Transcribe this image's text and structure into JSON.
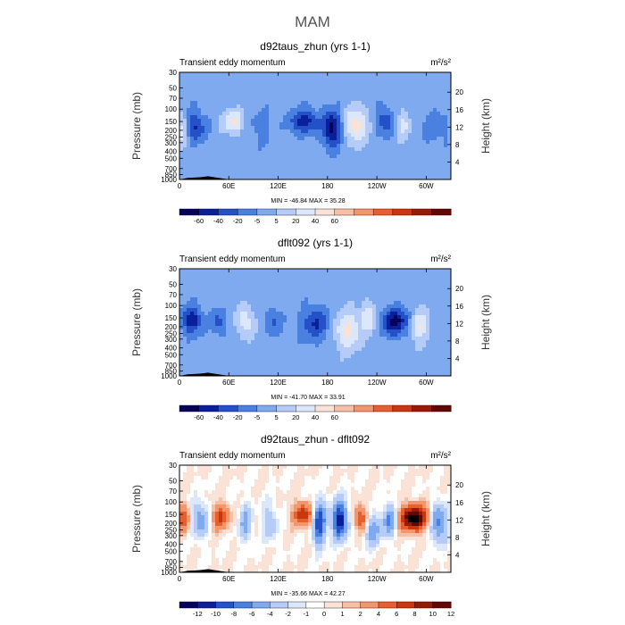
{
  "figure": {
    "title": "MAM"
  },
  "colors": {
    "scale_a": [
      "#06005c",
      "#0a1f9a",
      "#2450c8",
      "#4a80e0",
      "#80aaf0",
      "#b4ccf7",
      "#dde7fb",
      "#fbe2d6",
      "#f7bfa6",
      "#f2966e",
      "#e6602f",
      "#c8380f",
      "#981a06",
      "#620700"
    ],
    "scale_b": [
      "#06005c",
      "#0a1f9a",
      "#2450c8",
      "#4a80e0",
      "#80aaf0",
      "#b4ccf7",
      "#dde7fb",
      "#ffffff",
      "#fbe2d6",
      "#f7bfa6",
      "#f2966e",
      "#e6602f",
      "#c8380f",
      "#981a06",
      "#620700"
    ]
  },
  "chart_data": [
    {
      "type": "heatmap",
      "title": "d92taus_zhun (yrs 1-1)",
      "subtitle_left": "Transient eddy momentum",
      "units": "m²/s²",
      "ylabel": "Pressure  (mb)",
      "ylabel_right": "Height  (km)",
      "x_ticks": [
        "0",
        "60E",
        "120E",
        "180",
        "120W",
        "60W"
      ],
      "x_tick_values": [
        0,
        60,
        120,
        180,
        240,
        300
      ],
      "xlim": [
        0,
        330
      ],
      "y_ticks": [
        "30",
        "50",
        "70",
        "100",
        "150",
        "200",
        "250",
        "300",
        "400",
        "500",
        "700",
        "850",
        "1000"
      ],
      "y_tick_values": [
        30,
        50,
        70,
        100,
        150,
        200,
        250,
        300,
        400,
        500,
        700,
        850,
        1000
      ],
      "ylim": [
        1000,
        30
      ],
      "y_right_ticks": [
        "4",
        "8",
        "12",
        "16",
        "20"
      ],
      "y_right_values": [
        4,
        8,
        12,
        16,
        20
      ],
      "min_max": "MIN = -46.84   MAX =  35.28",
      "levels": [
        "-60",
        "-40",
        "-20",
        "-5",
        "5",
        "20",
        "40",
        "60"
      ],
      "scale": "scale_a",
      "blobs": [
        {
          "lon": 18,
          "p": 180,
          "amp": -30,
          "wl": 12,
          "wp": 0.45
        },
        {
          "lon": 5,
          "p": 200,
          "amp": 22,
          "wl": 8,
          "wp": 0.5
        },
        {
          "lon": 65,
          "p": 150,
          "amp": 28,
          "wl": 11,
          "wp": 0.35
        },
        {
          "lon": 100,
          "p": 180,
          "amp": -12,
          "wl": 10,
          "wp": 0.45
        },
        {
          "lon": 152,
          "p": 150,
          "amp": -35,
          "wl": 16,
          "wp": 0.35
        },
        {
          "lon": 185,
          "p": 190,
          "amp": -46,
          "wl": 10,
          "wp": 0.55
        },
        {
          "lon": 215,
          "p": 170,
          "amp": 35,
          "wl": 12,
          "wp": 0.5
        },
        {
          "lon": 250,
          "p": 150,
          "amp": -22,
          "wl": 10,
          "wp": 0.4
        },
        {
          "lon": 272,
          "p": 170,
          "amp": 18,
          "wl": 8,
          "wp": 0.4
        },
        {
          "lon": 310,
          "p": 180,
          "amp": -10,
          "wl": 15,
          "wp": 0.5
        }
      ]
    },
    {
      "type": "heatmap",
      "title": "dflt092 (yrs 1-1)",
      "subtitle_left": "Transient eddy momentum",
      "units": "m²/s²",
      "ylabel": "Pressure  (mb)",
      "ylabel_right": "Height  (km)",
      "x_ticks": [
        "0",
        "60E",
        "120E",
        "180",
        "120W",
        "60W"
      ],
      "x_tick_values": [
        0,
        60,
        120,
        180,
        240,
        300
      ],
      "xlim": [
        0,
        330
      ],
      "y_ticks": [
        "30",
        "50",
        "70",
        "100",
        "150",
        "200",
        "250",
        "300",
        "400",
        "500",
        "700",
        "850",
        "1000"
      ],
      "y_tick_values": [
        30,
        50,
        70,
        100,
        150,
        200,
        250,
        300,
        400,
        500,
        700,
        850,
        1000
      ],
      "ylim": [
        1000,
        30
      ],
      "y_right_ticks": [
        "4",
        "8",
        "12",
        "16",
        "20"
      ],
      "y_right_values": [
        4,
        8,
        12,
        16,
        20
      ],
      "min_max": "MIN = -41.70   MAX =  33.91",
      "levels": [
        "-60",
        "-40",
        "-20",
        "-5",
        "5",
        "20",
        "40",
        "60"
      ],
      "scale": "scale_a",
      "blobs": [
        {
          "lon": 15,
          "p": 160,
          "amp": -32,
          "wl": 12,
          "wp": 0.4
        },
        {
          "lon": 48,
          "p": 170,
          "amp": -15,
          "wl": 8,
          "wp": 0.4
        },
        {
          "lon": 80,
          "p": 170,
          "amp": 20,
          "wl": 9,
          "wp": 0.45
        },
        {
          "lon": 115,
          "p": 170,
          "amp": -14,
          "wl": 8,
          "wp": 0.4
        },
        {
          "lon": 165,
          "p": 180,
          "amp": -25,
          "wl": 14,
          "wp": 0.5
        },
        {
          "lon": 205,
          "p": 230,
          "amp": 28,
          "wl": 14,
          "wp": 0.55
        },
        {
          "lon": 230,
          "p": 150,
          "amp": 22,
          "wl": 9,
          "wp": 0.4
        },
        {
          "lon": 262,
          "p": 170,
          "amp": -41,
          "wl": 14,
          "wp": 0.4
        },
        {
          "lon": 292,
          "p": 200,
          "amp": 24,
          "wl": 10,
          "wp": 0.45
        }
      ]
    },
    {
      "type": "heatmap",
      "title": "d92taus_zhun - dflt092",
      "subtitle_left": "Transient eddy momentum",
      "units": "m²/s²",
      "ylabel": "Pressure  (mb)",
      "ylabel_right": "Height  (km)",
      "x_ticks": [
        "0",
        "60E",
        "120E",
        "180",
        "120W",
        "60W"
      ],
      "x_tick_values": [
        0,
        60,
        120,
        180,
        240,
        300
      ],
      "xlim": [
        0,
        330
      ],
      "y_ticks": [
        "30",
        "50",
        "70",
        "100",
        "150",
        "200",
        "250",
        "300",
        "400",
        "500",
        "700",
        "850",
        "1000"
      ],
      "y_tick_values": [
        30,
        50,
        70,
        100,
        150,
        200,
        250,
        300,
        400,
        500,
        700,
        850,
        1000
      ],
      "ylim": [
        1000,
        30
      ],
      "y_right_ticks": [
        "4",
        "8",
        "12",
        "16",
        "20"
      ],
      "y_right_values": [
        4,
        8,
        12,
        16,
        20
      ],
      "min_max": "MIN = -35.66   MAX =  42.27",
      "levels": [
        "-12",
        "-10",
        "-8",
        "-6",
        "-4",
        "-2",
        "-1",
        "0",
        "1",
        "2",
        "4",
        "6",
        "8",
        "10",
        "12"
      ],
      "scale": "scale_b",
      "blobs": [
        {
          "lon": 5,
          "p": 170,
          "amp": 16,
          "wl": 7,
          "wp": 0.45
        },
        {
          "lon": 25,
          "p": 180,
          "amp": -18,
          "wl": 9,
          "wp": 0.55
        },
        {
          "lon": 50,
          "p": 160,
          "amp": 20,
          "wl": 10,
          "wp": 0.4
        },
        {
          "lon": 80,
          "p": 200,
          "amp": -14,
          "wl": 8,
          "wp": 0.6
        },
        {
          "lon": 110,
          "p": 200,
          "amp": -12,
          "wl": 8,
          "wp": 0.6
        },
        {
          "lon": 150,
          "p": 150,
          "amp": 22,
          "wl": 12,
          "wp": 0.4
        },
        {
          "lon": 170,
          "p": 200,
          "amp": -30,
          "wl": 8,
          "wp": 0.7
        },
        {
          "lon": 195,
          "p": 180,
          "amp": -35,
          "wl": 9,
          "wp": 0.6
        },
        {
          "lon": 220,
          "p": 170,
          "amp": 20,
          "wl": 8,
          "wp": 0.4
        },
        {
          "lon": 235,
          "p": 250,
          "amp": -16,
          "wl": 10,
          "wp": 0.5
        },
        {
          "lon": 255,
          "p": 180,
          "amp": -20,
          "wl": 8,
          "wp": 0.5
        },
        {
          "lon": 285,
          "p": 170,
          "amp": 42,
          "wl": 16,
          "wp": 0.4
        },
        {
          "lon": 315,
          "p": 200,
          "amp": -22,
          "wl": 10,
          "wp": 0.6
        }
      ]
    }
  ]
}
